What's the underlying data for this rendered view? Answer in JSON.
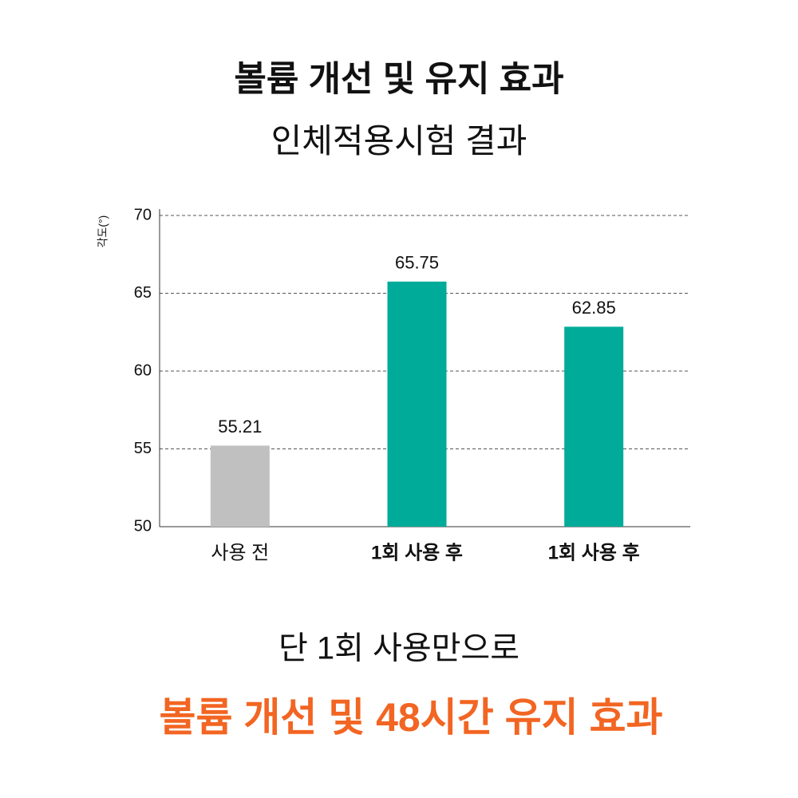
{
  "chart_data": {
    "type": "bar",
    "title": "볼륨 개선 및 유지 효과",
    "subtitle": "인체적용시험 결과",
    "y_label": "각도(°)",
    "categories": [
      "사용 전",
      "1회 사용 후",
      "1회 사용 후"
    ],
    "values": [
      55.21,
      65.75,
      62.85
    ],
    "colors": [
      "#c0c0c0",
      "#00ab99",
      "#00ab99"
    ],
    "category_label_colors": [
      "#111111",
      "#00ab99",
      "#00ab99"
    ],
    "ylim": [
      50,
      70
    ],
    "yticks": [
      50,
      55,
      60,
      65,
      70
    ],
    "grid": true,
    "footnote": "단 1회 사용만으로",
    "highlight": "볼륨 개선 및 48시간 유지 효과",
    "highlight_color": "#f26522"
  }
}
